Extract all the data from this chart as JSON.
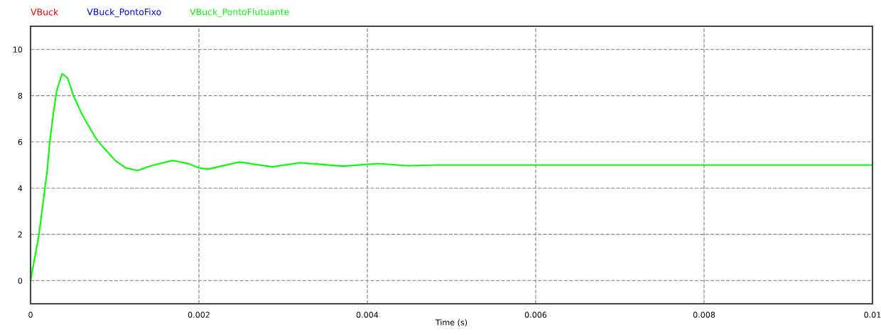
{
  "chart_data": {
    "type": "line",
    "xlabel": "Time (s)",
    "x": [
      0,
      0.0001,
      0.000158,
      0.0002,
      0.000228,
      0.00027,
      0.00031,
      0.000374,
      0.00044,
      0.00051,
      0.00061,
      0.00071,
      0.00079,
      0.00088,
      0.00101,
      0.00113,
      0.00127,
      0.00144,
      0.00169,
      0.00188,
      0.002,
      0.00211,
      0.00248,
      0.00287,
      0.0032,
      0.00371,
      0.00413,
      0.00447,
      0.00484,
      0.006,
      0.008,
      0.01
    ],
    "series": [
      {
        "name": "VBuck",
        "color": "#ff0000",
        "values": [
          null,
          null,
          null,
          null,
          null,
          null,
          null,
          null,
          null,
          null,
          null,
          null,
          null,
          null,
          null,
          null,
          null,
          null,
          null,
          null,
          null,
          null,
          null,
          null,
          null,
          null,
          null,
          null,
          null,
          null,
          null,
          null
        ]
      },
      {
        "name": "VBuck_PontoFixo",
        "color": "#0000ff",
        "values": [
          null,
          null,
          null,
          null,
          null,
          null,
          null,
          null,
          null,
          null,
          null,
          null,
          null,
          null,
          null,
          null,
          null,
          null,
          null,
          null,
          null,
          null,
          null,
          null,
          null,
          null,
          null,
          null,
          null,
          null,
          null,
          null
        ]
      },
      {
        "name": "VBuck_PontoFlutuante",
        "color": "#00ff00",
        "values": [
          0,
          2.0,
          3.64,
          4.83,
          6.0,
          7.2,
          8.2,
          8.95,
          8.76,
          8.0,
          7.2,
          6.56,
          6.08,
          5.7,
          5.18,
          4.88,
          4.76,
          4.98,
          5.2,
          5.05,
          4.88,
          4.82,
          5.13,
          4.92,
          5.1,
          4.95,
          5.06,
          4.97,
          5.0,
          5.0,
          5.0,
          5.0
        ]
      }
    ],
    "xlim": [
      0,
      0.01
    ],
    "xticks": [
      0,
      0.002,
      0.004,
      0.006,
      0.008,
      0.01
    ],
    "ylim": [
      -1,
      11
    ],
    "yticks": [
      0,
      2,
      4,
      6,
      8,
      10
    ],
    "grid": true
  }
}
